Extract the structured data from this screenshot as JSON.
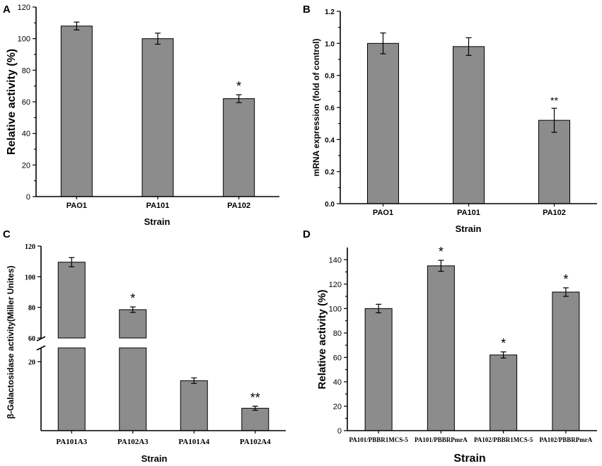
{
  "figure": {
    "bar_color": "#8c8c8c",
    "axis_color": "#000000"
  },
  "chart_data": [
    {
      "panel": "A",
      "type": "bar",
      "categories": [
        "PAO1",
        "PA101",
        "PA102"
      ],
      "values": [
        108,
        100,
        62
      ],
      "errors": [
        2.5,
        3.5,
        2.5
      ],
      "significance": [
        "",
        "",
        "*"
      ],
      "title": "",
      "xlabel": "Strain",
      "ylabel": "Relative activity (%)",
      "ylim": [
        0,
        120
      ],
      "yticks": [
        "0",
        "20",
        "40",
        "60",
        "80",
        "100",
        "120"
      ]
    },
    {
      "panel": "B",
      "type": "bar",
      "categories": [
        "PAO1",
        "PA101",
        "PA102"
      ],
      "values": [
        1.0,
        0.98,
        0.52
      ],
      "errors": [
        0.065,
        0.055,
        0.075
      ],
      "significance": [
        "",
        "",
        "**"
      ],
      "title": "",
      "xlabel": "Strain",
      "ylabel": "mRNA expression (fold of control)",
      "ylim": [
        0,
        1.2
      ],
      "yticks": [
        "0.0",
        "0.2",
        "0.4",
        "0.6",
        "0.8",
        "1.0",
        "1.2"
      ]
    },
    {
      "panel": "C",
      "type": "bar",
      "categories": [
        "PA101A3",
        "PA102A3",
        "PA101A4",
        "PA102A4"
      ],
      "values": [
        109.5,
        78.5,
        14.5,
        6.5
      ],
      "errors": [
        3,
        1.8,
        0.8,
        0.6
      ],
      "significance": [
        "",
        "*",
        "",
        "**"
      ],
      "title": "",
      "xlabel": "Strain",
      "ylabel": "β-Galactosidase activity(Miller Unites)",
      "ylim": [
        0,
        120
      ],
      "axis_break": [
        24,
        60
      ],
      "yticks_lower": [
        "20"
      ],
      "yticks_upper": [
        "60",
        "80",
        "100",
        "120"
      ]
    },
    {
      "panel": "D",
      "type": "bar",
      "categories": [
        "PA101/PBBR1MCS-5",
        "PA101/PBBRPmrA",
        "PA102/PBBR1MCS-5",
        "PA102/PBBRPmrA"
      ],
      "values": [
        100,
        135,
        62,
        113.5
      ],
      "errors": [
        3.5,
        4.5,
        2.5,
        3.5
      ],
      "significance": [
        "",
        "*",
        "*",
        "*"
      ],
      "title": "",
      "xlabel": "Strain",
      "ylabel": "Relative activity (%)",
      "ylim": [
        0,
        150
      ],
      "yticks": [
        "0",
        "20",
        "40",
        "60",
        "80",
        "100",
        "120",
        "140"
      ]
    }
  ]
}
